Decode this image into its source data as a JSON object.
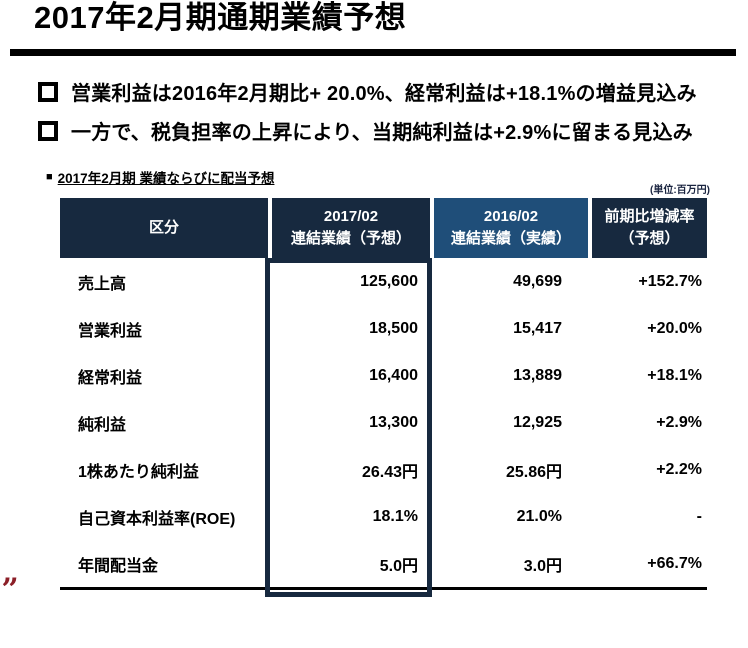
{
  "slide": {
    "title": "2017年2月期通期業績予想",
    "bullets": [
      {
        "text": "営業利益は2016年2月期比+ 20.0%、経常利益は+18.1%の増益見込み"
      },
      {
        "text": "一方で、税負担率の上昇により、当期純利益は+2.9%に留まる見込み"
      }
    ],
    "corner_mark": "„"
  },
  "table": {
    "caption_marker": "■",
    "caption": "2017年2月期 業績ならびに配当予想",
    "unit_note": "(単位:百万円)",
    "columns": [
      {
        "title": "区分",
        "subtitle": ""
      },
      {
        "title": "2017/02",
        "subtitle": "連結業績（予想）"
      },
      {
        "title": "2016/02",
        "subtitle": "連結業績（実績）"
      },
      {
        "title": "前期比増減率",
        "subtitle": "（予想）"
      }
    ],
    "rows": [
      {
        "label": "売上高",
        "forecast_2017": "125,600",
        "actual_2016": "49,699",
        "change": "+152.7%"
      },
      {
        "label": "営業利益",
        "forecast_2017": "18,500",
        "actual_2016": "15,417",
        "change": "+20.0%"
      },
      {
        "label": "経常利益",
        "forecast_2017": "16,400",
        "actual_2016": "13,889",
        "change": "+18.1%"
      },
      {
        "label": "純利益",
        "forecast_2017": "13,300",
        "actual_2016": "12,925",
        "change": "+2.9%"
      },
      {
        "label": "1株あたり純利益",
        "forecast_2017": "26.43円",
        "actual_2016": "25.86円",
        "change": "+2.2%"
      },
      {
        "label": "自己資本利益率(ROE)",
        "forecast_2017": "18.1%",
        "actual_2016": "21.0%",
        "change": "-"
      },
      {
        "label": "年間配当金",
        "forecast_2017": "5.0円",
        "actual_2016": "3.0円",
        "change": "+66.7%"
      }
    ]
  },
  "colors": {
    "header_navy": "#17293F",
    "header_blue": "#1F4E79",
    "accent_red": "#8C1F28"
  }
}
